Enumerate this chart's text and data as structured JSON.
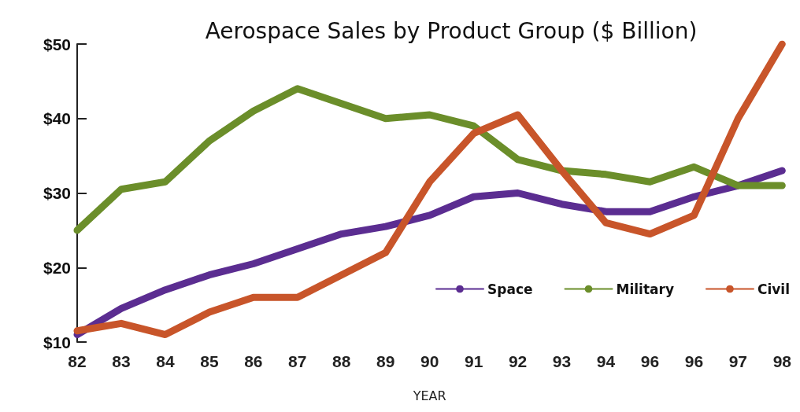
{
  "chart_data": {
    "type": "line",
    "title": "Aerospace Sales by Product Group ($ Billion)",
    "xlabel": "YEAR",
    "categories": [
      "82",
      "83",
      "84",
      "85",
      "86",
      "87",
      "88",
      "89",
      "90",
      "91",
      "92",
      "93",
      "94",
      "96",
      "96",
      "97",
      "98"
    ],
    "series": [
      {
        "name": "Space",
        "color": "#5b2d91",
        "values": [
          11,
          14.5,
          17,
          19,
          20.5,
          22.5,
          24.5,
          25.5,
          27,
          29.5,
          30,
          28.5,
          27.5,
          27.5,
          29.5,
          31,
          33
        ]
      },
      {
        "name": "Military",
        "color": "#6b8e2a",
        "values": [
          25,
          30.5,
          31.5,
          37,
          41,
          44,
          42,
          40,
          40.5,
          39,
          34.5,
          33,
          32.5,
          31.5,
          33.5,
          31,
          31
        ]
      },
      {
        "name": "Civil",
        "color": "#c8552a",
        "values": [
          11.5,
          12.5,
          11,
          14,
          16,
          16,
          19,
          22,
          31.5,
          38,
          40.5,
          33,
          26,
          24.5,
          27,
          40,
          50
        ]
      }
    ],
    "ylim": [
      10,
      50
    ],
    "yticks": [
      {
        "value": 10,
        "label": "$10"
      },
      {
        "value": 20,
        "label": "$20"
      },
      {
        "value": 30,
        "label": "$30"
      },
      {
        "value": 40,
        "label": "$40"
      },
      {
        "value": 50,
        "label": "$50"
      }
    ],
    "grid": false,
    "legend": "bottom right",
    "marker": "none",
    "line_style": "solid"
  }
}
